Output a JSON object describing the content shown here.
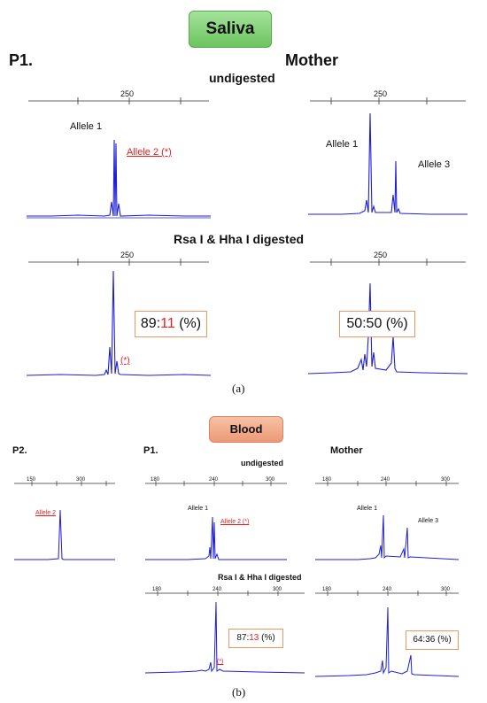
{
  "panel_a": {
    "badge": "Saliva",
    "left_label": "P1.",
    "right_label": "Mother",
    "row1_title": "undigested",
    "row2_title": "Rsa I & Hha I digested",
    "tick_label": "250",
    "p1_allele1": "Allele 1",
    "p1_allele2": "Allele 2 (*)",
    "mother_allele1": "Allele 1",
    "mother_allele3": "Allele 3",
    "star_label": "(*)",
    "p1_ratio_major": "89",
    "p1_ratio_minor": "11",
    "p1_ratio_suffix": "(%)",
    "mother_ratio": "50:50 (%)",
    "caption": "(a)"
  },
  "panel_b": {
    "badge": "Blood",
    "p2_label": "P2.",
    "p1_label": "P1.",
    "mother_label": "Mother",
    "row1_title": "undigested",
    "row2_title": "Rsa I & Hha I digested",
    "p2_ticks": [
      "150",
      "300"
    ],
    "ticks": [
      "180",
      "240",
      "300"
    ],
    "p2_allele2": "Allele 2",
    "p1_allele1": "Allele 1",
    "p1_allele2": "Allele 2 (*)",
    "mother_allele1": "Allele 1",
    "mother_allele3": "Allele 3",
    "star_label": "(*)",
    "p1_ratio_major": "87",
    "p1_ratio_minor": "13",
    "p1_ratio_suffix": "(%)",
    "mother_ratio": "64:36 (%)",
    "caption": "(b)"
  },
  "colors": {
    "trace": "#1f1fd6",
    "highlight": "#e8201f",
    "box_border": "#e89a62"
  }
}
